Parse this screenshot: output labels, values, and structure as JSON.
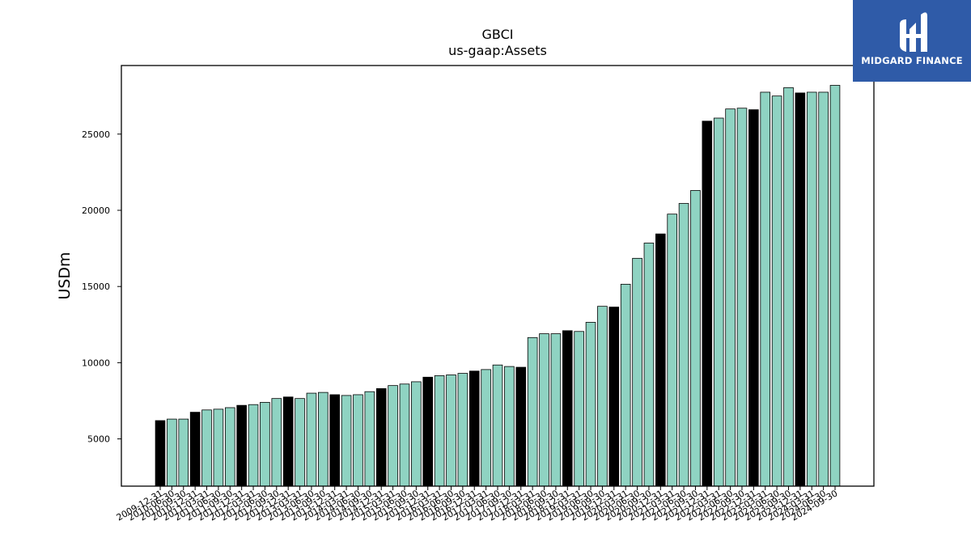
{
  "brand": {
    "name": "MIDGARD FINANCE",
    "bg": "#2f5ba8"
  },
  "chart_data": {
    "type": "bar",
    "title": "GBCI",
    "subtitle": "us-gaap:Assets",
    "ylabel": "USDm",
    "xlabel": "",
    "ylim": [
      1900,
      29500
    ],
    "yticks": [
      5000,
      10000,
      15000,
      20000,
      25000
    ],
    "colors": {
      "quarter": "#8fd3c2",
      "year_end": "#000000",
      "edge": "#000000"
    },
    "categories": [
      "2009-12-31",
      "2010-06-30",
      "2010-09-30",
      "2010-12-31",
      "2011-03-31",
      "2011-06-30",
      "2011-09-30",
      "2011-12-31",
      "2012-03-31",
      "2012-06-30",
      "2012-09-30",
      "2012-12-31",
      "2013-03-31",
      "2013-06-30",
      "2013-09-30",
      "2013-12-31",
      "2014-03-31",
      "2014-06-30",
      "2014-09-30",
      "2014-12-31",
      "2015-03-31",
      "2015-06-30",
      "2015-09-30",
      "2015-12-31",
      "2016-03-31",
      "2016-06-30",
      "2016-09-30",
      "2016-12-31",
      "2017-03-31",
      "2017-06-30",
      "2017-09-30",
      "2017-12-31",
      "2018-03-31",
      "2018-06-30",
      "2018-09-30",
      "2018-12-31",
      "2019-03-31",
      "2019-06-30",
      "2019-09-30",
      "2019-12-31",
      "2020-03-31",
      "2020-06-30",
      "2020-09-30",
      "2020-12-31",
      "2021-03-31",
      "2021-06-30",
      "2021-09-30",
      "2021-12-31",
      "2022-03-31",
      "2022-06-30",
      "2022-09-30",
      "2022-12-31",
      "2023-03-31",
      "2023-06-30",
      "2023-09-30",
      "2023-12-31",
      "2024-03-31",
      "2024-06-30",
      "2024-09-30"
    ],
    "values": [
      6200,
      6300,
      6300,
      6750,
      6900,
      6950,
      7050,
      7200,
      7250,
      7400,
      7650,
      7750,
      7650,
      8000,
      8050,
      7900,
      7850,
      7900,
      8100,
      8300,
      8500,
      8600,
      8750,
      9050,
      9150,
      9200,
      9300,
      9450,
      9550,
      9850,
      9750,
      9700,
      11650,
      11900,
      11900,
      12100,
      12050,
      12650,
      13700,
      13650,
      15150,
      16850,
      17850,
      18450,
      19750,
      20450,
      21300,
      25850,
      26050,
      26650,
      26700,
      26600,
      27750,
      27500,
      28050,
      27700,
      27750,
      27750,
      28200
    ],
    "year_end": [
      true,
      false,
      false,
      true,
      false,
      false,
      false,
      true,
      false,
      false,
      false,
      true,
      false,
      false,
      false,
      true,
      false,
      false,
      false,
      true,
      false,
      false,
      false,
      true,
      false,
      false,
      false,
      true,
      false,
      false,
      false,
      true,
      false,
      false,
      false,
      true,
      false,
      false,
      false,
      true,
      false,
      false,
      false,
      true,
      false,
      false,
      false,
      true,
      false,
      false,
      false,
      true,
      false,
      false,
      false,
      true,
      false,
      false,
      false
    ],
    "grid": false,
    "legend": "none"
  }
}
